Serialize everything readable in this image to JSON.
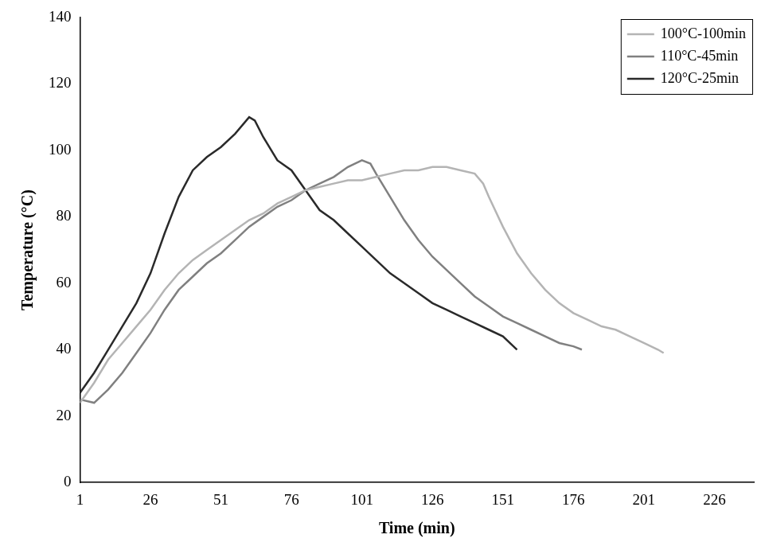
{
  "chart_data": {
    "type": "line",
    "x_label": "Time (min)",
    "y_label": "Temperature (°C)",
    "xlim": [
      1,
      240
    ],
    "xticks": [
      1,
      26,
      51,
      76,
      101,
      126,
      151,
      176,
      201,
      226
    ],
    "ylim": [
      0,
      140
    ],
    "yticks": [
      0,
      20,
      40,
      60,
      80,
      100,
      120,
      140
    ],
    "grid": false,
    "legend": "upper right",
    "series": [
      {
        "name": "100°C-100min",
        "color": "#b4b4b4",
        "x": [
          1,
          6,
          11,
          16,
          21,
          26,
          31,
          36,
          41,
          46,
          51,
          56,
          61,
          66,
          71,
          76,
          81,
          86,
          91,
          96,
          101,
          106,
          111,
          116,
          121,
          126,
          131,
          136,
          141,
          144,
          146,
          151,
          156,
          161,
          166,
          171,
          176,
          181,
          186,
          191,
          196,
          201,
          206,
          208
        ],
        "values": [
          24,
          30,
          37,
          42,
          47,
          52,
          58,
          63,
          67,
          70,
          73,
          76,
          79,
          81,
          84,
          86,
          88,
          89,
          90,
          91,
          91,
          92,
          93,
          94,
          94,
          95,
          95,
          94,
          93,
          90,
          86,
          77,
          69,
          63,
          58,
          54,
          51,
          49,
          47,
          46,
          44,
          42,
          40,
          39
        ]
      },
      {
        "name": "110°C-45min",
        "color": "#808080",
        "x": [
          1,
          6,
          11,
          16,
          21,
          26,
          31,
          36,
          41,
          46,
          51,
          56,
          61,
          66,
          71,
          76,
          81,
          86,
          91,
          96,
          101,
          104,
          106,
          111,
          116,
          121,
          126,
          131,
          136,
          141,
          146,
          151,
          156,
          161,
          166,
          171,
          176,
          179
        ],
        "values": [
          25,
          24,
          28,
          33,
          39,
          45,
          52,
          58,
          62,
          66,
          69,
          73,
          77,
          80,
          83,
          85,
          88,
          90,
          92,
          95,
          97,
          96,
          93,
          86,
          79,
          73,
          68,
          64,
          60,
          56,
          53,
          50,
          48,
          46,
          44,
          42,
          41,
          40
        ]
      },
      {
        "name": "120°C-25min",
        "color": "#2a2a2a",
        "x": [
          1,
          6,
          11,
          16,
          21,
          26,
          31,
          36,
          41,
          46,
          51,
          56,
          61,
          63,
          66,
          71,
          76,
          81,
          86,
          91,
          96,
          101,
          106,
          111,
          116,
          121,
          126,
          131,
          136,
          141,
          146,
          151,
          156
        ],
        "values": [
          27,
          33,
          40,
          47,
          54,
          63,
          75,
          86,
          94,
          98,
          101,
          105,
          110,
          109,
          104,
          97,
          94,
          88,
          82,
          79,
          75,
          71,
          67,
          63,
          60,
          57,
          54,
          52,
          50,
          48,
          46,
          44,
          40
        ]
      }
    ]
  }
}
